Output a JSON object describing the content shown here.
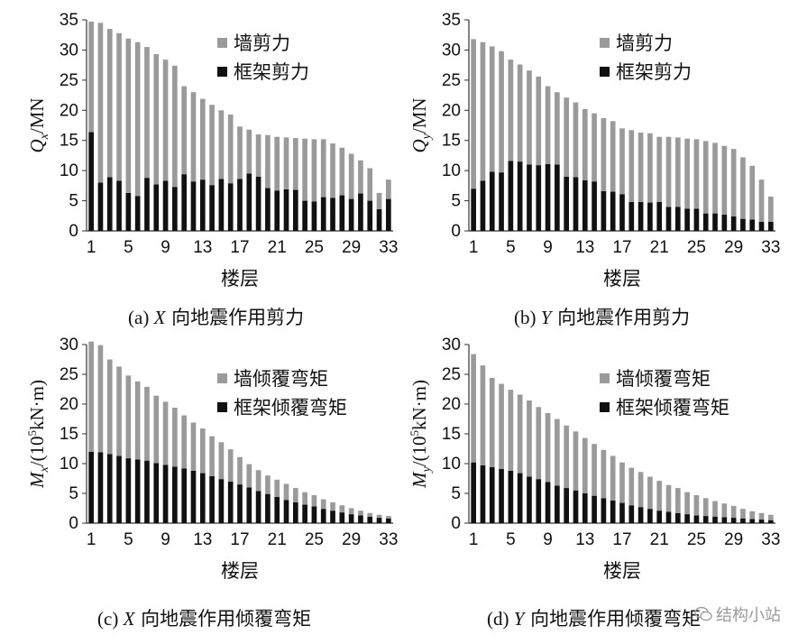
{
  "captions": [
    {
      "prefix": "(a) ",
      "axis": "X",
      "suffix": " 向地震作用剪力"
    },
    {
      "prefix": "(b) ",
      "axis": "Y",
      "suffix": " 向地震作用剪力"
    },
    {
      "prefix": "(c) ",
      "axis": "X",
      "suffix": " 向地震作用倾覆弯矩"
    },
    {
      "prefix": "(d) ",
      "axis": "Y",
      "suffix": " 向地震作用倾覆弯矩"
    }
  ],
  "watermark": {
    "text": "结构小站",
    "icon": "wechat-icon"
  },
  "colors": {
    "wall": "#9a9a9a",
    "frame": "#111111"
  },
  "chart_data": [
    {
      "type": "bar",
      "stacked": true,
      "xlabel": "楼层",
      "ylabel": {
        "main": "Q",
        "sub": "x",
        "unit": "/MN"
      },
      "ylim": [
        0,
        35
      ],
      "yticks": [
        0,
        5,
        10,
        15,
        20,
        25,
        30,
        35
      ],
      "x": [
        1,
        2,
        3,
        4,
        5,
        6,
        7,
        8,
        9,
        10,
        11,
        12,
        13,
        14,
        15,
        16,
        17,
        18,
        19,
        20,
        21,
        22,
        23,
        24,
        25,
        26,
        27,
        28,
        29,
        30,
        31,
        32,
        33
      ],
      "xtick_labels": [
        "1",
        "5",
        "9",
        "13",
        "17",
        "21",
        "25",
        "29",
        "33"
      ],
      "xtick_values": [
        1,
        5,
        9,
        13,
        17,
        21,
        25,
        29,
        33
      ],
      "legend": [
        "墙剪力",
        "框架剪力"
      ],
      "legend_position": "top-right",
      "series": [
        {
          "name": "框架剪力",
          "values": [
            16.4,
            8.0,
            8.9,
            8.3,
            6.3,
            5.8,
            8.8,
            7.7,
            8.3,
            7.3,
            9.4,
            8.2,
            8.5,
            7.6,
            8.6,
            7.9,
            8.6,
            9.5,
            9.0,
            7.1,
            6.7,
            6.9,
            6.8,
            5.0,
            4.9,
            5.6,
            5.5,
            5.9,
            5.3,
            6.2,
            5.0,
            3.6,
            5.3
          ]
        },
        {
          "name": "墙剪力",
          "values": [
            18.3,
            26.5,
            24.6,
            24.5,
            25.6,
            25.5,
            21.7,
            21.6,
            20.1,
            20.1,
            14.6,
            14.8,
            13.4,
            13.3,
            11.4,
            11.4,
            8.7,
            7.3,
            7.0,
            8.8,
            8.9,
            8.6,
            8.6,
            10.3,
            10.3,
            9.6,
            9.0,
            7.9,
            7.5,
            5.5,
            5.4,
            2.7,
            3.2
          ]
        }
      ]
    },
    {
      "type": "bar",
      "stacked": true,
      "xlabel": "楼层",
      "ylabel": {
        "main": "Q",
        "sub": "y",
        "unit": "/MN"
      },
      "ylim": [
        0,
        35
      ],
      "yticks": [
        0,
        5,
        10,
        15,
        20,
        25,
        30,
        35
      ],
      "x": [
        1,
        2,
        3,
        4,
        5,
        6,
        7,
        8,
        9,
        10,
        11,
        12,
        13,
        14,
        15,
        16,
        17,
        18,
        19,
        20,
        21,
        22,
        23,
        24,
        25,
        26,
        27,
        28,
        29,
        30,
        31,
        32,
        33
      ],
      "xtick_labels": [
        "1",
        "5",
        "9",
        "13",
        "17",
        "21",
        "25",
        "29",
        "33"
      ],
      "xtick_values": [
        1,
        5,
        9,
        13,
        17,
        21,
        25,
        29,
        33
      ],
      "legend": [
        "墙剪力",
        "框架剪力"
      ],
      "legend_position": "top-right",
      "series": [
        {
          "name": "框架剪力",
          "values": [
            7.0,
            8.3,
            9.8,
            9.7,
            11.6,
            11.5,
            11.0,
            10.9,
            11.1,
            11.0,
            9.0,
            8.9,
            8.4,
            8.2,
            6.6,
            6.5,
            6.1,
            4.8,
            4.8,
            4.7,
            4.8,
            4.0,
            4.0,
            3.7,
            3.7,
            2.9,
            2.9,
            2.7,
            2.4,
            2.0,
            1.9,
            1.5,
            1.5
          ]
        },
        {
          "name": "墙剪力",
          "values": [
            24.8,
            23.0,
            20.8,
            20.1,
            16.8,
            16.1,
            15.6,
            14.7,
            12.9,
            12.0,
            13.1,
            12.4,
            11.8,
            11.3,
            12.1,
            11.7,
            10.9,
            11.9,
            11.5,
            11.5,
            10.8,
            11.6,
            11.5,
            11.6,
            11.5,
            12.0,
            11.7,
            11.4,
            11.2,
            10.2,
            8.9,
            7.0,
            4.2
          ]
        }
      ]
    },
    {
      "type": "bar",
      "stacked": true,
      "xlabel": "楼层",
      "ylabel": {
        "main": "M",
        "sub": "x",
        "unit_pre": "/(10",
        "sup": "5",
        "unit_post": "kN·m)"
      },
      "ylim": [
        0,
        30
      ],
      "yticks": [
        0,
        5,
        10,
        15,
        20,
        25,
        30
      ],
      "x": [
        1,
        2,
        3,
        4,
        5,
        6,
        7,
        8,
        9,
        10,
        11,
        12,
        13,
        14,
        15,
        16,
        17,
        18,
        19,
        20,
        21,
        22,
        23,
        24,
        25,
        26,
        27,
        28,
        29,
        30,
        31,
        32,
        33
      ],
      "xtick_labels": [
        "1",
        "5",
        "9",
        "13",
        "17",
        "21",
        "25",
        "29",
        "33"
      ],
      "xtick_values": [
        1,
        5,
        9,
        13,
        17,
        21,
        25,
        29,
        33
      ],
      "legend": [
        "墙倾覆弯矩",
        "框架倾覆弯矩"
      ],
      "legend_position": "top-right",
      "series": [
        {
          "name": "框架倾覆弯矩",
          "values": [
            12.0,
            11.9,
            11.6,
            11.3,
            10.9,
            10.7,
            10.5,
            10.1,
            9.8,
            9.5,
            9.2,
            8.8,
            8.4,
            7.9,
            7.4,
            7.0,
            6.5,
            6.0,
            5.4,
            4.9,
            4.4,
            3.9,
            3.5,
            3.1,
            2.8,
            2.4,
            2.1,
            1.8,
            1.5,
            1.3,
            1.1,
            0.9,
            0.8
          ]
        },
        {
          "name": "墙倾覆弯矩",
          "values": [
            18.5,
            18.0,
            15.9,
            15.0,
            13.9,
            13.1,
            12.4,
            11.3,
            10.6,
            9.9,
            8.9,
            8.1,
            7.5,
            6.7,
            6.2,
            5.4,
            4.6,
            3.9,
            3.5,
            3.1,
            2.9,
            2.7,
            2.4,
            2.1,
            1.9,
            1.6,
            1.4,
            1.2,
            1.0,
            0.8,
            0.6,
            0.5,
            0.4
          ]
        }
      ]
    },
    {
      "type": "bar",
      "stacked": true,
      "xlabel": "楼层",
      "ylabel": {
        "main": "M",
        "sub": "y",
        "unit_pre": "/(10",
        "sup": "5",
        "unit_post": "kN·m)"
      },
      "ylim": [
        0,
        30
      ],
      "yticks": [
        0,
        5,
        10,
        15,
        20,
        25,
        30
      ],
      "x": [
        1,
        2,
        3,
        4,
        5,
        6,
        7,
        8,
        9,
        10,
        11,
        12,
        13,
        14,
        15,
        16,
        17,
        18,
        19,
        20,
        21,
        22,
        23,
        24,
        25,
        26,
        27,
        28,
        29,
        30,
        31,
        32,
        33
      ],
      "xtick_labels": [
        "1",
        "5",
        "9",
        "13",
        "17",
        "21",
        "25",
        "29",
        "33"
      ],
      "xtick_values": [
        1,
        5,
        9,
        13,
        17,
        21,
        25,
        29,
        33
      ],
      "legend": [
        "墙倾覆弯矩",
        "框架倾覆弯矩"
      ],
      "legend_position": "top-right",
      "series": [
        {
          "name": "框架倾覆弯矩",
          "values": [
            10.2,
            9.7,
            9.4,
            9.1,
            8.8,
            8.4,
            7.8,
            7.4,
            6.9,
            6.3,
            5.9,
            5.5,
            5.0,
            4.6,
            4.2,
            3.8,
            3.4,
            3.0,
            2.7,
            2.4,
            2.1,
            1.9,
            1.7,
            1.5,
            1.3,
            1.2,
            1.1,
            1.0,
            0.9,
            0.8,
            0.7,
            0.6,
            0.5
          ]
        },
        {
          "name": "墙倾覆弯矩",
          "values": [
            18.2,
            16.8,
            15.0,
            14.3,
            13.6,
            13.2,
            12.8,
            12.1,
            11.6,
            11.2,
            10.5,
            9.9,
            9.3,
            8.7,
            8.1,
            7.5,
            6.8,
            6.3,
            5.9,
            5.4,
            5.0,
            4.5,
            4.2,
            3.7,
            3.4,
            3.0,
            2.6,
            2.3,
            2.0,
            1.6,
            1.3,
            1.1,
            0.9
          ]
        }
      ]
    }
  ]
}
